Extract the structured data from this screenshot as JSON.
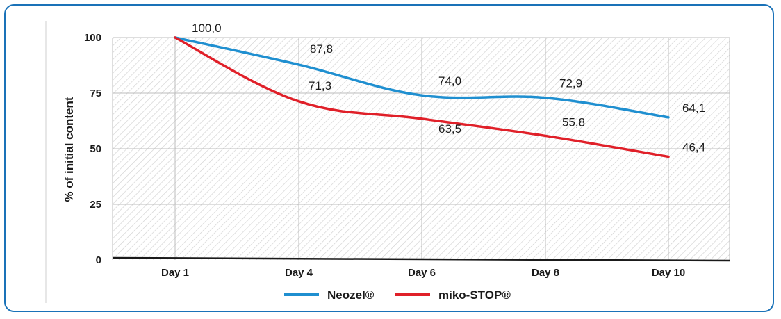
{
  "chart_data": {
    "type": "line",
    "categories": [
      "Day 1",
      "Day 4",
      "Day 6",
      "Day 8",
      "Day 10"
    ],
    "series": [
      {
        "name": "Neozel®",
        "color": "#1f8fd0",
        "values": [
          100.0,
          87.8,
          74.0,
          72.9,
          64.1
        ],
        "labels": [
          "100,0",
          "87,8",
          "74,0",
          "72,9",
          "64,1"
        ]
      },
      {
        "name": "miko-STOP®",
        "color": "#e02029",
        "values": [
          100.0,
          71.3,
          63.5,
          55.8,
          46.4
        ],
        "labels": [
          "",
          "71,3",
          "63,5",
          "55,8",
          "46,4"
        ]
      }
    ],
    "ylabel": "% of initial content",
    "xlabel": "",
    "ylim": [
      0,
      100
    ],
    "yticks": [
      "0",
      "25",
      "50",
      "75",
      "100"
    ],
    "grid": true,
    "legend": "bottom-center"
  }
}
